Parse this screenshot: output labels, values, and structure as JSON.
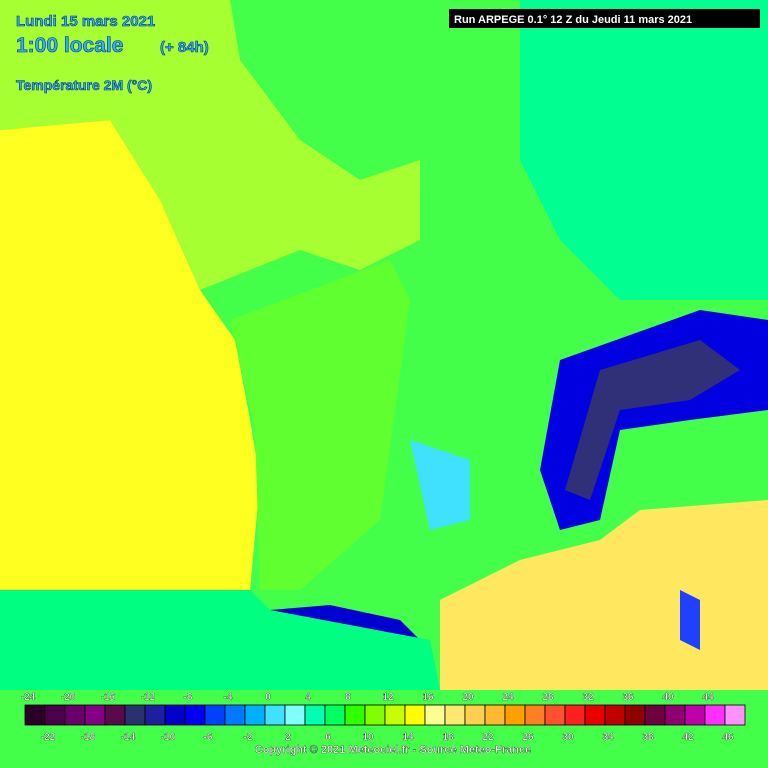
{
  "header": {
    "date": "Lundi 15 mars 2021",
    "time": "1:00 locale",
    "lead": "(+ 84h)",
    "variable": "Température 2M (°C)",
    "run": "Run ARPEGE 0.1° 12 Z du Jeudi 11 mars 2021"
  },
  "legend": {
    "labels": [
      -24,
      -22,
      -20,
      -18,
      -16,
      -14,
      -12,
      -10,
      -8,
      -6,
      -4,
      -2,
      0,
      2,
      4,
      6,
      8,
      10,
      12,
      14,
      16,
      18,
      20,
      22,
      24,
      26,
      28,
      30,
      32,
      34,
      36,
      38,
      40,
      42,
      44,
      46
    ],
    "colors": [
      "#2a0028",
      "#4a0048",
      "#6a006a",
      "#840084",
      "#5a0a4a",
      "#2a3070",
      "#1e1ea0",
      "#0000c8",
      "#0000f0",
      "#0040ff",
      "#0078ff",
      "#00b0ff",
      "#40e0ff",
      "#80ffff",
      "#00ffb0",
      "#00ff60",
      "#30ff00",
      "#80ff00",
      "#c8ff00",
      "#ffff00",
      "#ffff90",
      "#ffe870",
      "#ffd050",
      "#ffb830",
      "#ffa000",
      "#ff8020",
      "#ff5030",
      "#ff2020",
      "#e80000",
      "#c00000",
      "#900000",
      "#700040",
      "#900070",
      "#c000a8",
      "#ff30ff",
      "#ff90ff"
    ]
  },
  "copyright": "Copyright © 2021 Meteociel.fr - Source Meteo-France"
}
